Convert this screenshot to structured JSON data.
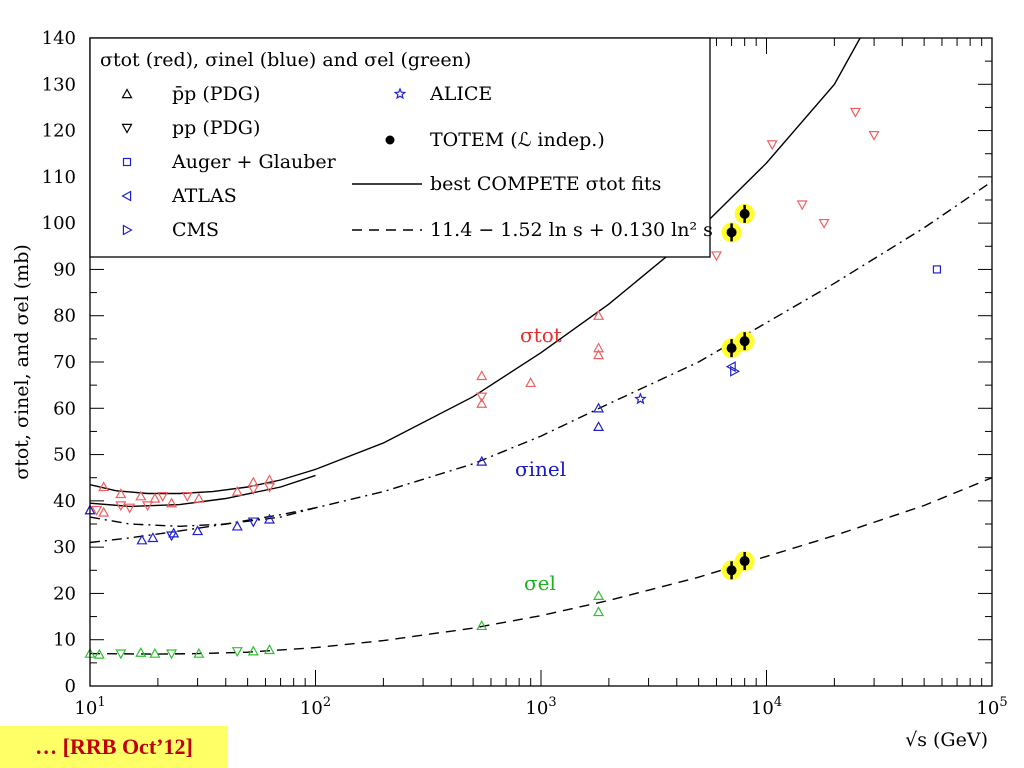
{
  "chart_data": {
    "type": "scatter",
    "xscale": "log",
    "xlim": [
      10,
      100000
    ],
    "ylim": [
      0,
      140
    ],
    "ylabel": "σtot, σinel, and σel (mb)",
    "xlabel": "√s (GeV)",
    "x_ticks": [
      "10^1",
      "10^2",
      "10^3",
      "10^4",
      "10^5"
    ],
    "y_ticks": [
      0,
      10,
      20,
      30,
      40,
      50,
      60,
      70,
      80,
      90,
      100,
      110,
      120,
      130,
      140
    ],
    "legend_title": "σtot (red), σinel (blue) and σel (green)",
    "legend": [
      {
        "label": "p̄p (PDG)",
        "marker": "triangle-up"
      },
      {
        "label": "pp (PDG)",
        "marker": "triangle-down"
      },
      {
        "label": "Auger + Glauber",
        "marker": "square"
      },
      {
        "label": "ATLAS",
        "marker": "triangle-left"
      },
      {
        "label": "CMS",
        "marker": "triangle-right"
      },
      {
        "label": "ALICE",
        "marker": "star"
      },
      {
        "label": "TOTEM (ℒ indep.)",
        "marker": "dot"
      },
      {
        "label": "best COMPETE σtot fits",
        "marker": "solid-line"
      },
      {
        "label": "11.4 − 1.52 ln s + 0.130 ln² s",
        "marker": "dashed-line"
      }
    ],
    "annotations": [
      {
        "text": "σtot",
        "x": 1000,
        "y": 78,
        "color": "#e53030"
      },
      {
        "text": "σinel",
        "x": 1000,
        "y": 47,
        "color": "#1a1ac8"
      },
      {
        "text": "σel",
        "x": 1000,
        "y": 21,
        "color": "#20b020"
      }
    ],
    "curves": [
      {
        "name": "σtot COMPETE fit",
        "style": "solid",
        "x": [
          10,
          13,
          18,
          25,
          35,
          50,
          70,
          100,
          200,
          500,
          1000,
          2000,
          5000,
          10000,
          20000,
          26000
        ],
        "y": [
          43.5,
          42.2,
          41.6,
          41.6,
          42.0,
          43.0,
          44.5,
          46.8,
          52.5,
          62.5,
          72.0,
          82.5,
          98.5,
          113.0,
          130.0,
          140.0
        ]
      },
      {
        "name": "σtot fit (lower branch)",
        "style": "solid",
        "x": [
          10,
          15,
          25,
          40,
          70,
          100
        ],
        "y": [
          39.5,
          38.8,
          39.2,
          40.5,
          43.0,
          45.5
        ]
      },
      {
        "name": "σinel fit",
        "style": "dashdot",
        "x": [
          10,
          15,
          25,
          40,
          70,
          100,
          200,
          500,
          1000,
          2000,
          5000,
          10000,
          20000,
          50000,
          100000
        ],
        "y": [
          36.5,
          35.0,
          34.5,
          35.0,
          36.5,
          38.5,
          42.0,
          48.0,
          54.0,
          61.0,
          70.0,
          78.5,
          87.0,
          99.0,
          109.0
        ]
      },
      {
        "name": "σinel fit (lower branch)",
        "style": "dashdot",
        "x": [
          10,
          15,
          25,
          40,
          70,
          100
        ],
        "y": [
          31.0,
          32.0,
          33.5,
          35.0,
          37.0,
          38.5
        ]
      },
      {
        "name": "σel fit",
        "style": "dashed",
        "x": [
          10,
          20,
          30,
          50,
          100,
          200,
          500,
          1000,
          2000,
          5000,
          10000,
          20000,
          50000,
          100000
        ],
        "y": [
          7.0,
          6.9,
          7.0,
          7.3,
          8.3,
          9.8,
          12.5,
          15.2,
          18.5,
          23.5,
          28.0,
          32.5,
          39.0,
          45.0
        ]
      }
    ],
    "points": [
      {
        "x": 10.0,
        "y": 38.0,
        "c": "red",
        "m": "up"
      },
      {
        "x": 10.7,
        "y": 38.0,
        "c": "red",
        "m": "down"
      },
      {
        "x": 11.5,
        "y": 37.5,
        "c": "red",
        "m": "up"
      },
      {
        "x": 11.5,
        "y": 43.0,
        "c": "red",
        "m": "up"
      },
      {
        "x": 13.7,
        "y": 39.0,
        "c": "red",
        "m": "down"
      },
      {
        "x": 13.7,
        "y": 41.5,
        "c": "red",
        "m": "up"
      },
      {
        "x": 15.0,
        "y": 38.5,
        "c": "red",
        "m": "down"
      },
      {
        "x": 16.8,
        "y": 41.0,
        "c": "red",
        "m": "up"
      },
      {
        "x": 18.0,
        "y": 39.0,
        "c": "red",
        "m": "down"
      },
      {
        "x": 19.4,
        "y": 40.5,
        "c": "red",
        "m": "up"
      },
      {
        "x": 21.0,
        "y": 41.0,
        "c": "red",
        "m": "down"
      },
      {
        "x": 23.0,
        "y": 39.5,
        "c": "red",
        "m": "up"
      },
      {
        "x": 27.0,
        "y": 41.0,
        "c": "red",
        "m": "down"
      },
      {
        "x": 30.4,
        "y": 40.5,
        "c": "red",
        "m": "up"
      },
      {
        "x": 45.0,
        "y": 42.0,
        "c": "red",
        "m": "up"
      },
      {
        "x": 53.0,
        "y": 42.5,
        "c": "red",
        "m": "down"
      },
      {
        "x": 53.0,
        "y": 44.0,
        "c": "red",
        "m": "up"
      },
      {
        "x": 62.5,
        "y": 43.0,
        "c": "red",
        "m": "down"
      },
      {
        "x": 62.5,
        "y": 44.5,
        "c": "red",
        "m": "up"
      },
      {
        "x": 546,
        "y": 61.0,
        "c": "red",
        "m": "up"
      },
      {
        "x": 546,
        "y": 62.5,
        "c": "red",
        "m": "down"
      },
      {
        "x": 546,
        "y": 67.0,
        "c": "red",
        "m": "up"
      },
      {
        "x": 900,
        "y": 65.5,
        "c": "red",
        "m": "up"
      },
      {
        "x": 1800,
        "y": 71.5,
        "c": "red",
        "m": "up"
      },
      {
        "x": 1800,
        "y": 73.0,
        "c": "red",
        "m": "up"
      },
      {
        "x": 1800,
        "y": 80.0,
        "c": "red",
        "m": "up"
      },
      {
        "x": 6000,
        "y": 93.0,
        "c": "red",
        "m": "down"
      },
      {
        "x": 10600,
        "y": 117.0,
        "c": "red",
        "m": "down"
      },
      {
        "x": 14400,
        "y": 104.0,
        "c": "red",
        "m": "down"
      },
      {
        "x": 18000,
        "y": 100.0,
        "c": "red",
        "m": "down"
      },
      {
        "x": 24800,
        "y": 124.0,
        "c": "red",
        "m": "down"
      },
      {
        "x": 30000,
        "y": 119.0,
        "c": "red",
        "m": "down"
      },
      {
        "x": 10.0,
        "y": 38.0,
        "c": "blue",
        "m": "up"
      },
      {
        "x": 17.0,
        "y": 31.5,
        "c": "blue",
        "m": "up"
      },
      {
        "x": 19.0,
        "y": 32.0,
        "c": "blue",
        "m": "up"
      },
      {
        "x": 23.0,
        "y": 32.5,
        "c": "blue",
        "m": "down"
      },
      {
        "x": 23.5,
        "y": 33.0,
        "c": "blue",
        "m": "up"
      },
      {
        "x": 30.0,
        "y": 33.5,
        "c": "blue",
        "m": "up"
      },
      {
        "x": 45.0,
        "y": 34.5,
        "c": "blue",
        "m": "up"
      },
      {
        "x": 53.0,
        "y": 35.5,
        "c": "blue",
        "m": "down"
      },
      {
        "x": 62.5,
        "y": 36.0,
        "c": "blue",
        "m": "up"
      },
      {
        "x": 546,
        "y": 48.5,
        "c": "blue",
        "m": "up"
      },
      {
        "x": 1800,
        "y": 56.0,
        "c": "blue",
        "m": "up"
      },
      {
        "x": 1800,
        "y": 60.0,
        "c": "blue",
        "m": "up"
      },
      {
        "x": 2760,
        "y": 62.0,
        "c": "blue",
        "m": "star"
      },
      {
        "x": 7000,
        "y": 69.0,
        "c": "blue",
        "m": "left"
      },
      {
        "x": 7200,
        "y": 68.0,
        "c": "blue",
        "m": "right"
      },
      {
        "x": 57000,
        "y": 90.0,
        "c": "blue",
        "m": "square"
      },
      {
        "x": 10.0,
        "y": 7.0,
        "c": "green",
        "m": "up"
      },
      {
        "x": 11.0,
        "y": 6.8,
        "c": "green",
        "m": "up"
      },
      {
        "x": 13.7,
        "y": 7.0,
        "c": "green",
        "m": "down"
      },
      {
        "x": 16.8,
        "y": 7.2,
        "c": "green",
        "m": "up"
      },
      {
        "x": 19.4,
        "y": 7.0,
        "c": "green",
        "m": "up"
      },
      {
        "x": 23.0,
        "y": 7.0,
        "c": "green",
        "m": "down"
      },
      {
        "x": 30.4,
        "y": 7.0,
        "c": "green",
        "m": "up"
      },
      {
        "x": 45.0,
        "y": 7.5,
        "c": "green",
        "m": "down"
      },
      {
        "x": 53.0,
        "y": 7.5,
        "c": "green",
        "m": "up"
      },
      {
        "x": 62.5,
        "y": 7.8,
        "c": "green",
        "m": "up"
      },
      {
        "x": 546,
        "y": 13.0,
        "c": "green",
        "m": "up"
      },
      {
        "x": 1800,
        "y": 16.0,
        "c": "green",
        "m": "up"
      },
      {
        "x": 1800,
        "y": 19.5,
        "c": "green",
        "m": "up"
      }
    ],
    "totem": [
      {
        "x": 7000,
        "y": 98.0
      },
      {
        "x": 8000,
        "y": 102.0
      },
      {
        "x": 7000,
        "y": 73.0
      },
      {
        "x": 8000,
        "y": 74.5
      },
      {
        "x": 7000,
        "y": 25.0
      },
      {
        "x": 8000,
        "y": 27.0
      }
    ],
    "colors": {
      "red": "#f06060",
      "blue": "#2020d0",
      "green": "#30c030",
      "totem_halo": "#ffff30"
    }
  },
  "footer_tag": "… [RRB Oct’12]"
}
